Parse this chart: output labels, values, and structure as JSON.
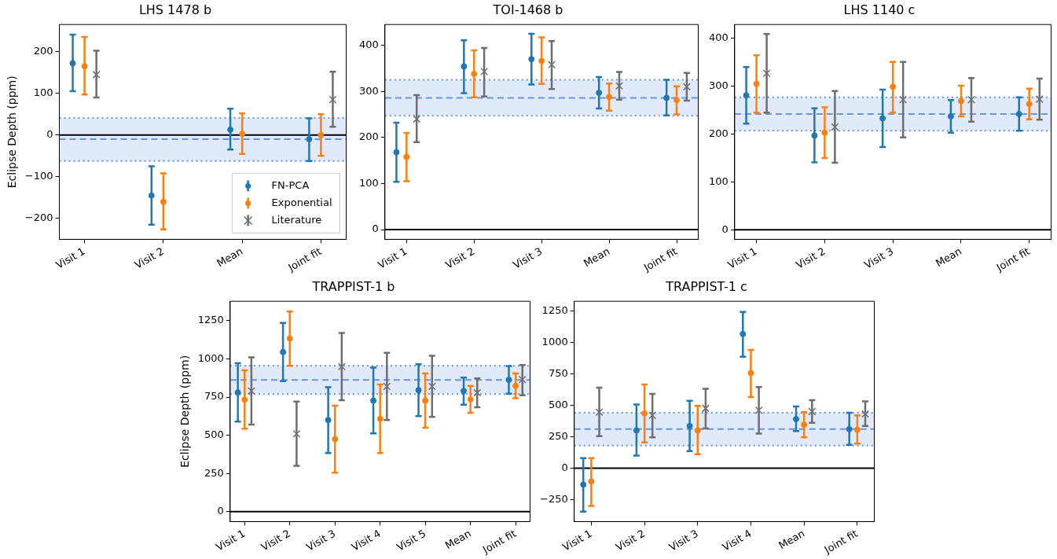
{
  "chart_data": [
    {
      "type": "scatter",
      "title": "LHS 1478 b",
      "ylabel": "Eclipse Depth (ppm)",
      "categories": [
        "Visit 1",
        "Visit 2",
        "Mean",
        "Joint fit"
      ],
      "ylim": [
        -250,
        265
      ],
      "yticks": [
        -200,
        -100,
        0,
        100,
        200
      ],
      "grid": false,
      "legend": "bottom right",
      "series": [
        {
          "name": "FN-PCA",
          "color": "#1f77b4",
          "marker": "circle",
          "values": [
            172,
            -145,
            13,
            -10
          ],
          "errors": [
            [
              105,
              241
            ],
            [
              -215,
              -75
            ],
            [
              -35,
              63
            ],
            [
              -62,
              40
            ]
          ]
        },
        {
          "name": "Exponential",
          "color": "#ff7f0e",
          "marker": "circle",
          "values": [
            165,
            -160,
            3,
            0
          ],
          "errors": [
            [
              97,
              235
            ],
            [
              -226,
              -92
            ],
            [
              -45,
              52
            ],
            [
              -50,
              50
            ]
          ]
        },
        {
          "name": "Literature",
          "color": "#6e6e6e",
          "marker": "cross",
          "values": [
            145,
            null,
            null,
            85
          ],
          "errors": [
            [
              90,
              202
            ],
            null,
            null,
            [
              20,
              152
            ]
          ]
        }
      ],
      "ref_lines": [
        {
          "axis": "y",
          "value": 0,
          "color": "#000000",
          "line_style": "solid"
        },
        {
          "axis": "y",
          "value": -10,
          "color": "#6495ed",
          "line_style": "dashed"
        },
        {
          "axis": "y",
          "value": -62,
          "color": "#6495ed",
          "line_style": "dotted"
        },
        {
          "axis": "y",
          "value": 41,
          "color": "#6495ed",
          "line_style": "dotted"
        }
      ],
      "bands": [
        {
          "axis": "y",
          "from": -62,
          "to": 41,
          "color": "#6495ed"
        }
      ]
    },
    {
      "type": "scatter",
      "title": "TOI-1468 b",
      "categories": [
        "Visit 1",
        "Visit 2",
        "Visit 3",
        "Mean",
        "Joint fit"
      ],
      "ylim": [
        -21,
        445
      ],
      "yticks": [
        0,
        100,
        200,
        300,
        400
      ],
      "grid": false,
      "series": [
        {
          "color": "#1f77b4",
          "marker": "circle",
          "values": [
            168,
            354,
            370,
            297,
            286
          ],
          "errors": [
            [
              104,
              232
            ],
            [
              296,
              411
            ],
            [
              315,
              425
            ],
            [
              263,
              331
            ],
            [
              248,
              325
            ]
          ]
        },
        {
          "color": "#ff7f0e",
          "marker": "circle",
          "values": [
            158,
            338,
            366,
            288,
            281
          ],
          "errors": [
            [
              105,
              210
            ],
            [
              287,
              389
            ],
            [
              316,
              417
            ],
            [
              258,
              317
            ],
            [
              250,
              311
            ]
          ]
        },
        {
          "color": "#6e6e6e",
          "marker": "cross",
          "values": [
            240,
            343,
            358,
            312,
            310
          ],
          "errors": [
            [
              190,
              292
            ],
            [
              289,
              394
            ],
            [
              305,
              409
            ],
            [
              282,
              342
            ],
            [
              280,
              340
            ]
          ]
        }
      ],
      "ref_lines": [
        {
          "axis": "y",
          "value": 0,
          "color": "#000000",
          "line_style": "solid"
        },
        {
          "axis": "y",
          "value": 286,
          "color": "#6495ed",
          "line_style": "dashed"
        },
        {
          "axis": "y",
          "value": 247,
          "color": "#6495ed",
          "line_style": "dotted"
        },
        {
          "axis": "y",
          "value": 325,
          "color": "#6495ed",
          "line_style": "dotted"
        }
      ],
      "bands": [
        {
          "axis": "y",
          "from": 247,
          "to": 325,
          "color": "#6495ed"
        }
      ]
    },
    {
      "type": "scatter",
      "title": "LHS 1140 c",
      "categories": [
        "Visit 1",
        "Visit 2",
        "Visit 3",
        "Mean",
        "Joint fit"
      ],
      "ylim": [
        -20,
        429
      ],
      "yticks": [
        0,
        100,
        200,
        300,
        400
      ],
      "grid": false,
      "series": [
        {
          "color": "#1f77b4",
          "marker": "circle",
          "values": [
            281,
            197,
            233,
            237,
            242
          ],
          "errors": [
            [
              222,
              340
            ],
            [
              141,
              254
            ],
            [
              173,
              293
            ],
            [
              203,
              271
            ],
            [
              207,
              277
            ]
          ]
        },
        {
          "color": "#ff7f0e",
          "marker": "circle",
          "values": [
            305,
            203,
            299,
            269,
            263
          ],
          "errors": [
            [
              245,
              365
            ],
            [
              150,
              256
            ],
            [
              245,
              351
            ],
            [
              237,
              301
            ],
            [
              231,
              295
            ]
          ]
        },
        {
          "color": "#6e6e6e",
          "marker": "cross",
          "values": [
            327,
            215,
            272,
            272,
            273
          ],
          "errors": [
            [
              245,
              409
            ],
            [
              140,
              290
            ],
            [
              193,
              351
            ],
            [
              226,
              317
            ],
            [
              230,
              316
            ]
          ]
        }
      ],
      "ref_lines": [
        {
          "axis": "y",
          "value": 0,
          "color": "#000000",
          "line_style": "solid"
        },
        {
          "axis": "y",
          "value": 242,
          "color": "#6495ed",
          "line_style": "dashed"
        },
        {
          "axis": "y",
          "value": 207,
          "color": "#6495ed",
          "line_style": "dotted"
        },
        {
          "axis": "y",
          "value": 277,
          "color": "#6495ed",
          "line_style": "dotted"
        }
      ],
      "bands": [
        {
          "axis": "y",
          "from": 207,
          "to": 277,
          "color": "#6495ed"
        }
      ]
    },
    {
      "type": "scatter",
      "title": "TRAPPIST-1 b",
      "ylabel": "Eclipse Depth (ppm)",
      "categories": [
        "Visit 1",
        "Visit 2",
        "Visit 3",
        "Visit 4",
        "Visit 5",
        "Mean",
        "Joint fit"
      ],
      "ylim": [
        -65,
        1377
      ],
      "yticks": [
        0,
        250,
        500,
        750,
        1000,
        1250
      ],
      "grid": false,
      "series": [
        {
          "color": "#1f77b4",
          "marker": "circle",
          "values": [
            780,
            1045,
            600,
            727,
            795,
            790,
            863
          ],
          "errors": [
            [
              590,
              972
            ],
            [
              855,
              1235
            ],
            [
              383,
              815
            ],
            [
              512,
              943
            ],
            [
              625,
              965
            ],
            [
              700,
              878
            ],
            [
              772,
              953
            ]
          ]
        },
        {
          "color": "#ff7f0e",
          "marker": "circle",
          "values": [
            733,
            1133,
            475,
            607,
            727,
            735,
            823
          ],
          "errors": [
            [
              543,
              925
            ],
            [
              955,
              1310
            ],
            [
              255,
              693
            ],
            [
              383,
              832
            ],
            [
              550,
              905
            ],
            [
              647,
              823
            ],
            [
              742,
              905
            ]
          ]
        },
        {
          "color": "#6e6e6e",
          "marker": "cross",
          "values": [
            790,
            510,
            950,
            820,
            820,
            778,
            865
          ],
          "errors": [
            [
              570,
              1010
            ],
            [
              300,
              720
            ],
            [
              730,
              1170
            ],
            [
              600,
              1040
            ],
            [
              620,
              1020
            ],
            [
              683,
              873
            ],
            [
              762,
              960
            ]
          ]
        }
      ],
      "ref_lines": [
        {
          "axis": "y",
          "value": 0,
          "color": "#000000",
          "line_style": "solid"
        },
        {
          "axis": "y",
          "value": 862,
          "color": "#6495ed",
          "line_style": "dashed"
        },
        {
          "axis": "y",
          "value": 770,
          "color": "#6495ed",
          "line_style": "dotted"
        },
        {
          "axis": "y",
          "value": 955,
          "color": "#6495ed",
          "line_style": "dotted"
        }
      ],
      "bands": [
        {
          "axis": "y",
          "from": 770,
          "to": 955,
          "color": "#6495ed"
        }
      ]
    },
    {
      "type": "scatter",
      "title": "TRAPPIST-1 c",
      "categories": [
        "Visit 1",
        "Visit 2",
        "Visit 3",
        "Visit 4",
        "Mean",
        "Joint fit"
      ],
      "ylim": [
        -424,
        1325
      ],
      "yticks": [
        -250,
        0,
        250,
        500,
        750,
        1000,
        1250
      ],
      "grid": false,
      "series": [
        {
          "color": "#1f77b4",
          "marker": "circle",
          "values": [
            -130,
            300,
            335,
            1065,
            390,
            310
          ],
          "errors": [
            [
              -345,
              80
            ],
            [
              100,
              505
            ],
            [
              135,
              535
            ],
            [
              885,
              1240
            ],
            [
              295,
              490
            ],
            [
              185,
              440
            ]
          ]
        },
        {
          "color": "#ff7f0e",
          "marker": "circle",
          "values": [
            -105,
            435,
            300,
            755,
            345,
            305
          ],
          "errors": [
            [
              -300,
              80
            ],
            [
              205,
              665
            ],
            [
              110,
              495
            ],
            [
              565,
              940
            ],
            [
              245,
              445
            ],
            [
              195,
              420
            ]
          ]
        },
        {
          "color": "#6e6e6e",
          "marker": "cross",
          "values": [
            445,
            420,
            475,
            460,
            450,
            430
          ],
          "errors": [
            [
              255,
              640
            ],
            [
              245,
              590
            ],
            [
              315,
              630
            ],
            [
              275,
              645
            ],
            [
              360,
              540
            ],
            [
              335,
              530
            ]
          ]
        }
      ],
      "ref_lines": [
        {
          "axis": "y",
          "value": 0,
          "color": "#000000",
          "line_style": "solid"
        },
        {
          "axis": "y",
          "value": 310,
          "color": "#6495ed",
          "line_style": "dashed"
        },
        {
          "axis": "y",
          "value": 180,
          "color": "#6495ed",
          "line_style": "dotted"
        },
        {
          "axis": "y",
          "value": 440,
          "color": "#6495ed",
          "line_style": "dotted"
        }
      ],
      "bands": [
        {
          "axis": "y",
          "from": 180,
          "to": 440,
          "color": "#6495ed"
        }
      ]
    }
  ]
}
